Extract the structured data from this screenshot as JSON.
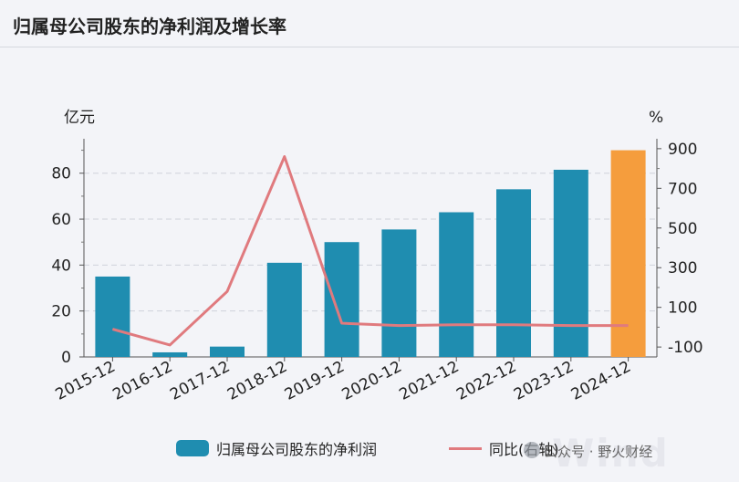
{
  "header": {
    "title": "归属母公司股东的净利润及增长率"
  },
  "chart_data": {
    "type": "bar+line",
    "categories": [
      "2015-12",
      "2016-12",
      "2017-12",
      "2018-12",
      "2019-12",
      "2020-12",
      "2021-12",
      "2022-12",
      "2023-12",
      "2024-12"
    ],
    "left_axis": {
      "unit": "亿元",
      "min": 0,
      "max": 95,
      "ticks": [
        0,
        20,
        40,
        60,
        80
      ]
    },
    "right_axis": {
      "unit": "%",
      "min": -150,
      "max": 950,
      "ticks": [
        -100,
        100,
        300,
        500,
        700,
        900
      ]
    },
    "series": [
      {
        "name": "归属母公司股东的净利润",
        "type": "bar",
        "axis": "left",
        "values": [
          35,
          2,
          4.5,
          41,
          50,
          55.5,
          63,
          73,
          81.5,
          90
        ],
        "colors": [
          "#1f8db0",
          "#1f8db0",
          "#1f8db0",
          "#1f8db0",
          "#1f8db0",
          "#1f8db0",
          "#1f8db0",
          "#1f8db0",
          "#1f8db0",
          "#f59d3d"
        ]
      },
      {
        "name": "同比(右轴)",
        "type": "line",
        "axis": "right",
        "color": "#e07a7e",
        "values": [
          -10,
          -90,
          180,
          860,
          20,
          8,
          12,
          12,
          8,
          8
        ]
      }
    ]
  },
  "legend": {
    "items": [
      {
        "label": "归属母公司股东的净利润",
        "color": "#1f8db0"
      },
      {
        "label": "同比(右轴)",
        "color": "#e07a7e"
      }
    ]
  },
  "watermark": {
    "brand": "Wind",
    "source": "公众号 · 野火财经"
  }
}
